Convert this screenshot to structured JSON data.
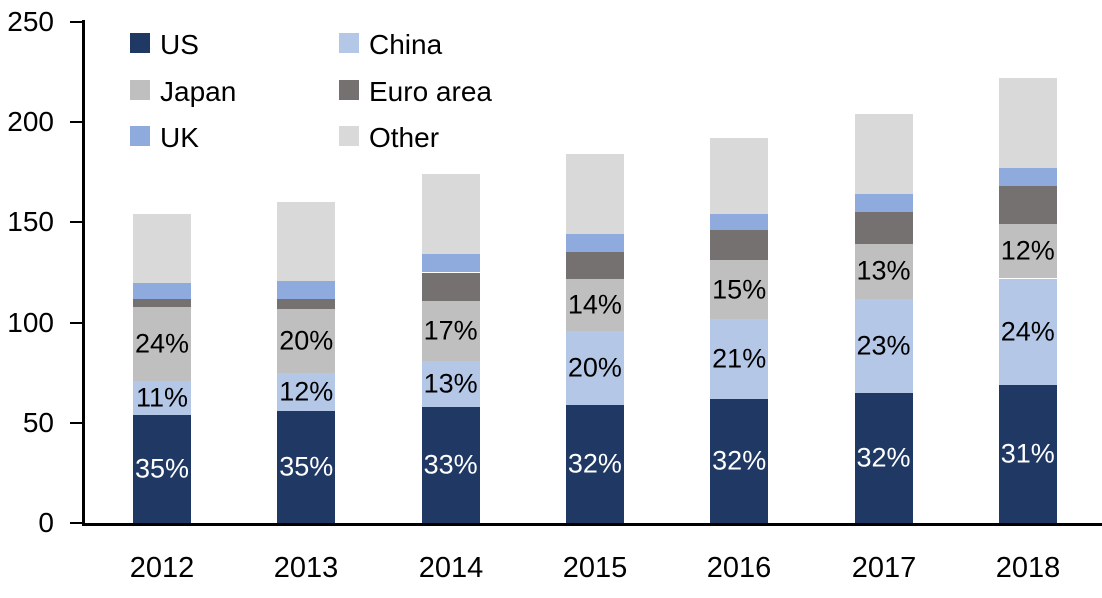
{
  "chart_data": {
    "type": "stacked-bar",
    "title": "",
    "categories": [
      "2012",
      "2013",
      "2014",
      "2015",
      "2016",
      "2017",
      "2018"
    ],
    "series": [
      {
        "name": "US",
        "color": "#1F3864",
        "label_color": "#FFFFFF",
        "values": [
          54,
          56,
          58,
          59,
          62,
          65,
          69
        ],
        "labels": [
          "35%",
          "35%",
          "33%",
          "32%",
          "32%",
          "32%",
          "31%"
        ]
      },
      {
        "name": "China",
        "color": "#B4C7E7",
        "label_color": "#000000",
        "values": [
          17,
          19,
          23,
          37,
          40,
          47,
          53
        ],
        "labels": [
          "11%",
          "12%",
          "13%",
          "20%",
          "21%",
          "23%",
          "24%"
        ]
      },
      {
        "name": "Japan",
        "color": "#BFBFBF",
        "label_color": "#000000",
        "values": [
          37,
          32,
          30,
          26,
          29,
          27,
          27
        ],
        "labels": [
          "24%",
          "20%",
          "17%",
          "14%",
          "15%",
          "13%",
          "12%"
        ]
      },
      {
        "name": "Euro area",
        "color": "#767171",
        "label_color": "#000000",
        "values": [
          4,
          5,
          14,
          13,
          15,
          16,
          19
        ],
        "labels": [
          null,
          null,
          null,
          null,
          null,
          null,
          null
        ]
      },
      {
        "name": "UK",
        "color": "#8FAADC",
        "label_color": "#000000",
        "values": [
          8,
          9,
          9,
          9,
          8,
          9,
          9
        ],
        "labels": [
          null,
          null,
          null,
          null,
          null,
          null,
          null
        ]
      },
      {
        "name": "Other",
        "color": "#D9D9D9",
        "label_color": "#000000",
        "values": [
          34,
          39,
          40,
          40,
          38,
          40,
          45
        ],
        "labels": [
          null,
          null,
          null,
          null,
          null,
          null,
          null
        ]
      }
    ],
    "totals": [
      154,
      160,
      174,
      184,
      192,
      204,
      222
    ],
    "y_ticks": [
      0,
      50,
      100,
      150,
      200,
      250
    ],
    "ylim": [
      0,
      250
    ],
    "grid": false,
    "legend": {
      "position": "top-left",
      "columns": 2,
      "order": [
        "US",
        "China",
        "Japan",
        "Euro area",
        "UK",
        "Other"
      ]
    },
    "axis_color": "#000000",
    "background": "#FFFFFF"
  }
}
